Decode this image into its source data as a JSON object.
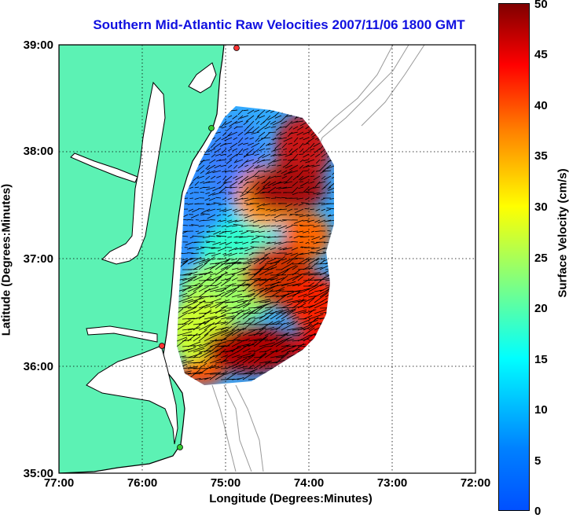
{
  "title": "Southern Mid-Atlantic Raw Velocities 2007/11/06 1800 GMT",
  "xlabel": "Longitude (Degrees:Minutes)",
  "ylabel": "Latitude (Degrees:Minutes)",
  "colorbar_label": "Surface Velocity (cm/s)",
  "x_ticks": [
    "77:00",
    "76:00",
    "75:00",
    "74:00",
    "73:00",
    "72:00"
  ],
  "y_ticks": [
    "39:00",
    "38:00",
    "37:00",
    "36:00",
    "35:00"
  ],
  "colorbar_ticks": [
    "50",
    "45",
    "40",
    "35",
    "30",
    "25",
    "20",
    "15",
    "10",
    "5",
    "0"
  ],
  "colors": {
    "title": "#1010e0",
    "land": "#5cf2b4",
    "coastline": "#000000",
    "bathymetry": "#999999",
    "station": "#ff3333",
    "station_alt": "#33cc33"
  },
  "chart_data": {
    "type": "heatmap",
    "title": "Southern Mid-Atlantic Raw Velocities 2007/11/06 1800 GMT",
    "xlabel": "Longitude (Degrees:Minutes)",
    "ylabel": "Latitude (Degrees:Minutes)",
    "xlim": [
      -77,
      -72
    ],
    "ylim": [
      35,
      39
    ],
    "colorbar": {
      "label": "Surface Velocity (cm/s)",
      "range": [
        0,
        50
      ],
      "colormap": "jet"
    },
    "grid": true,
    "stations": [
      {
        "lon": -74.87,
        "lat": 38.97,
        "color": "red"
      },
      {
        "lon": -75.17,
        "lat": 38.22,
        "color": "green"
      },
      {
        "lon": -75.74,
        "lat": 36.18,
        "color": "red"
      },
      {
        "lon": -75.53,
        "lat": 35.25,
        "color": "green"
      }
    ]
  }
}
